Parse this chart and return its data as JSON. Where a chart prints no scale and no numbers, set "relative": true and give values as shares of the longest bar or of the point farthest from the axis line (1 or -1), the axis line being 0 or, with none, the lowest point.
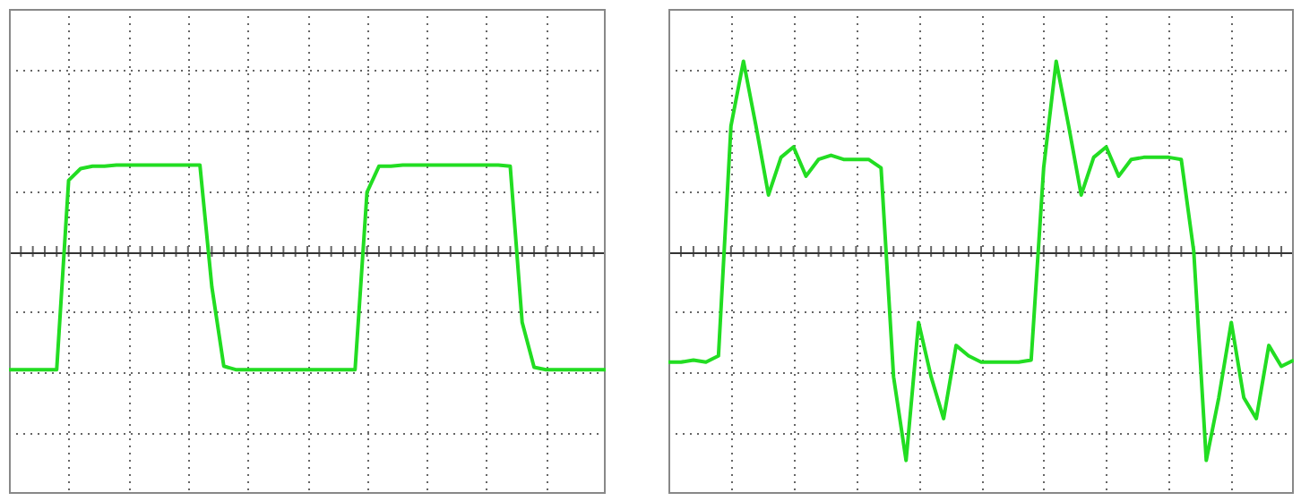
{
  "chart_data": [
    {
      "type": "line",
      "relative": true,
      "grid": true,
      "marker": "none",
      "line_style": "solid",
      "legend": false,
      "categories": [
        null,
        null,
        null,
        null,
        null,
        null,
        null,
        null,
        null,
        null,
        null,
        null,
        null,
        null,
        null,
        null,
        null,
        null,
        null,
        null,
        null,
        null,
        null,
        null,
        null,
        null,
        null,
        null,
        null,
        null,
        null,
        null,
        null,
        null,
        null,
        null,
        null,
        null,
        null,
        null,
        null,
        null,
        null,
        null,
        null,
        null,
        null,
        null,
        null,
        null,
        null
      ],
      "series": [
        {
          "color": "#22dd22",
          "values": [
            -1,
            -1,
            -1,
            -1,
            -1,
            0.6,
            0.7,
            0.72,
            0.72,
            0.73,
            0.73,
            0.73,
            0.73,
            0.73,
            0.73,
            0.73,
            0.73,
            -0.3,
            -0.97,
            -1,
            -1,
            -1,
            -1,
            -1,
            -1,
            -1,
            -1,
            -1,
            -1,
            -1,
            0.5,
            0.72,
            0.72,
            0.73,
            0.73,
            0.73,
            0.73,
            0.73,
            0.73,
            0.73,
            0.73,
            0.73,
            0.72,
            -0.6,
            -0.98,
            -1,
            -1,
            -1,
            -1,
            -1,
            -1
          ]
        }
      ]
    },
    {
      "type": "line",
      "relative": true,
      "grid": true,
      "marker": "none",
      "line_style": "solid",
      "legend": false,
      "categories": [
        null,
        null,
        null,
        null,
        null,
        null,
        null,
        null,
        null,
        null,
        null,
        null,
        null,
        null,
        null,
        null,
        null,
        null,
        null,
        null,
        null,
        null,
        null,
        null,
        null,
        null,
        null,
        null,
        null,
        null,
        null,
        null,
        null,
        null,
        null,
        null,
        null,
        null,
        null,
        null,
        null,
        null,
        null,
        null,
        null,
        null,
        null,
        null,
        null,
        null,
        null
      ],
      "series": [
        {
          "color": "#22dd22",
          "values": [
            -0.53,
            -0.53,
            -0.52,
            -0.53,
            -0.5,
            0.6,
            0.91,
            0.6,
            0.27,
            0.45,
            0.5,
            0.36,
            0.44,
            0.46,
            0.44,
            0.44,
            0.44,
            0.4,
            -0.6,
            -1,
            -0.34,
            -0.6,
            -0.8,
            -0.45,
            -0.5,
            -0.53,
            -0.53,
            -0.53,
            -0.53,
            -0.52,
            0.4,
            0.91,
            0.6,
            0.27,
            0.45,
            0.5,
            0.36,
            0.44,
            0.45,
            0.45,
            0.45,
            0.44,
            0,
            -1,
            -0.7,
            -0.34,
            -0.7,
            -0.8,
            -0.45,
            -0.55,
            -0.52
          ]
        }
      ]
    }
  ]
}
